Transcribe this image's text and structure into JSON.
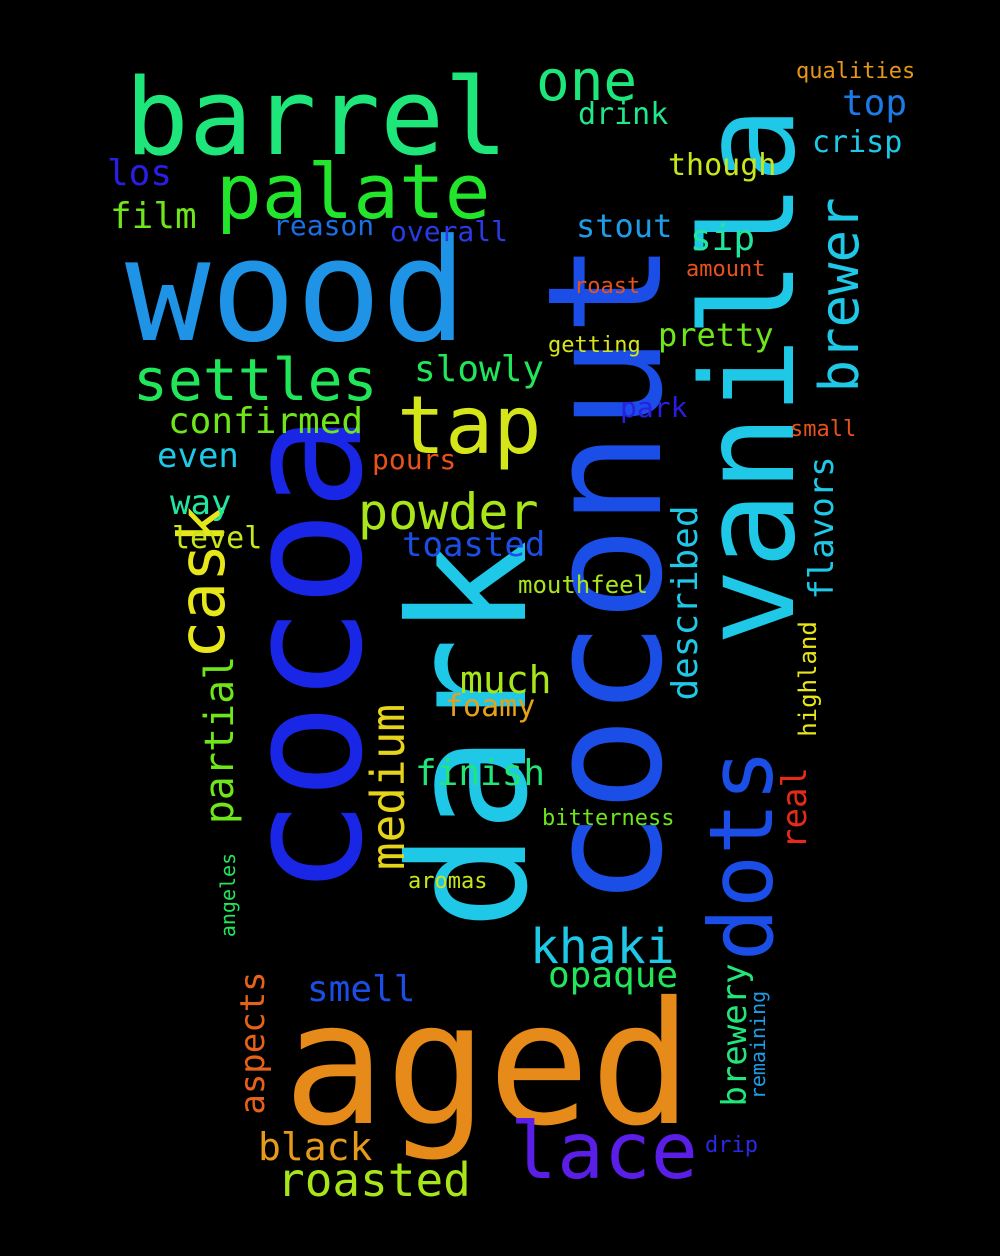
{
  "words": [
    {
      "text": "wood",
      "color": "#1f93e6"
    },
    {
      "text": "dark",
      "color": "#1ec8e6"
    },
    {
      "text": "coconut",
      "color": "#1b4ee6"
    },
    {
      "text": "cocoa",
      "color": "#1a26e6"
    },
    {
      "text": "vanilla",
      "color": "#1ec8e6"
    },
    {
      "text": "aged",
      "color": "#e68a1a"
    },
    {
      "text": "barrel",
      "color": "#1ee67a"
    },
    {
      "text": "palate",
      "color": "#22e62c"
    },
    {
      "text": "lace",
      "color": "#5a1ee6"
    },
    {
      "text": "dots",
      "color": "#1b4ee6"
    },
    {
      "text": "tap",
      "color": "#d4e61a"
    },
    {
      "text": "cask",
      "color": "#e6e61a"
    },
    {
      "text": "settles",
      "color": "#22e65a"
    },
    {
      "text": "brewer",
      "color": "#1ec8e6"
    },
    {
      "text": "one",
      "color": "#1ee67a"
    },
    {
      "text": "powder",
      "color": "#a8e61a"
    },
    {
      "text": "khaki",
      "color": "#1ec8e6"
    },
    {
      "text": "roasted",
      "color": "#a8e61a"
    },
    {
      "text": "medium",
      "color": "#e6d41a"
    },
    {
      "text": "partial",
      "color": "#6ee61a"
    },
    {
      "text": "black",
      "color": "#e69a1a"
    },
    {
      "text": "much",
      "color": "#a8e61a"
    },
    {
      "text": "confirmed",
      "color": "#6ee61a"
    },
    {
      "text": "finish",
      "color": "#22e67a"
    },
    {
      "text": "opaque",
      "color": "#22e65a"
    },
    {
      "text": "slowly",
      "color": "#22e65a"
    },
    {
      "text": "toasted",
      "color": "#1b4ee6"
    },
    {
      "text": "smell",
      "color": "#1b4ee6"
    },
    {
      "text": "described",
      "color": "#1ec8e6"
    },
    {
      "text": "flavors",
      "color": "#1ec8e6"
    },
    {
      "text": "brewery",
      "color": "#22e67a"
    },
    {
      "text": "aspects",
      "color": "#e6621a"
    },
    {
      "text": "film",
      "color": "#6ee61a"
    },
    {
      "text": "top",
      "color": "#1b7ae6"
    },
    {
      "text": "sip",
      "color": "#22e6a0"
    },
    {
      "text": "stout",
      "color": "#1e9ce6"
    },
    {
      "text": "pretty",
      "color": "#6ee61a"
    },
    {
      "text": "even",
      "color": "#1ec8e6"
    },
    {
      "text": "way",
      "color": "#22e6a0"
    },
    {
      "text": "crisp",
      "color": "#1ec8e6"
    },
    {
      "text": "though",
      "color": "#c8e61a"
    },
    {
      "text": "drink",
      "color": "#22e68a"
    },
    {
      "text": "los",
      "color": "#2a1ee6"
    },
    {
      "text": "real",
      "color": "#e62a1a"
    },
    {
      "text": "foamy",
      "color": "#e6a01a"
    },
    {
      "text": "level",
      "color": "#c8e61a"
    },
    {
      "text": "reason",
      "color": "#1b6ee6"
    },
    {
      "text": "overall",
      "color": "#2a3ae6"
    },
    {
      "text": "pours",
      "color": "#e6521a"
    },
    {
      "text": "park",
      "color": "#2a1ee6"
    },
    {
      "text": "qualities",
      "color": "#e6961a"
    },
    {
      "text": "amount",
      "color": "#e6521a"
    },
    {
      "text": "roast",
      "color": "#e6521a"
    },
    {
      "text": "getting",
      "color": "#d4e61a"
    },
    {
      "text": "small",
      "color": "#e6521a"
    },
    {
      "text": "mouthfeel",
      "color": "#a8e61a"
    },
    {
      "text": "highland",
      "color": "#e6e61a"
    },
    {
      "text": "bitterness",
      "color": "#6ee61a"
    },
    {
      "text": "aromas",
      "color": "#c8e61a"
    },
    {
      "text": "angeles",
      "color": "#22e65a"
    },
    {
      "text": "remaining",
      "color": "#1e9ce6"
    },
    {
      "text": "drip",
      "color": "#2a2ae6"
    }
  ]
}
